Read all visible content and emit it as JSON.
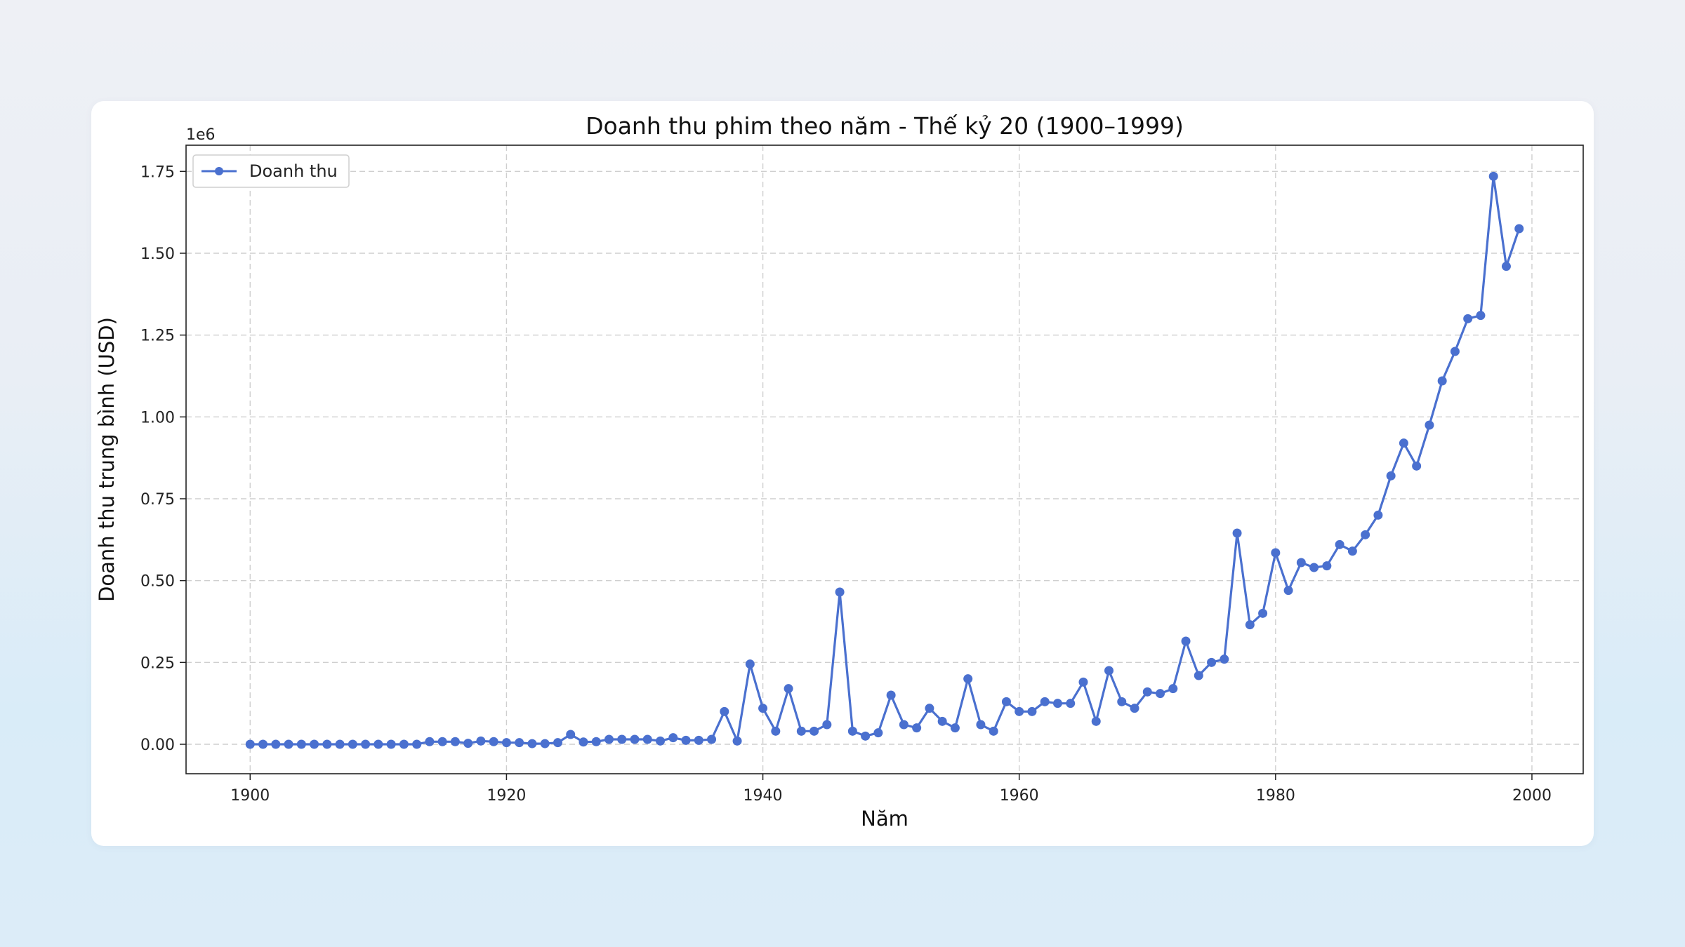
{
  "chart_data": {
    "type": "line",
    "title": "Doanh thu phim theo năm - Thế kỷ 20 (1900–1999)",
    "xlabel": "Năm",
    "ylabel": "Doanh thu trung bình (USD)",
    "y_offset_label": "1e6",
    "xlim": [
      1895,
      2004
    ],
    "ylim": [
      -0.09,
      1.83
    ],
    "x_ticks": [
      1900,
      1920,
      1940,
      1960,
      1980,
      2000
    ],
    "y_ticks": [
      0.0,
      0.25,
      0.5,
      0.75,
      1.0,
      1.25,
      1.5,
      1.75
    ],
    "y_tick_labels": [
      "0.00",
      "0.25",
      "0.50",
      "0.75",
      "1.00",
      "1.25",
      "1.50",
      "1.75"
    ],
    "grid": true,
    "legend_position": "top-left",
    "colors": {
      "series": "#4a70cf"
    },
    "x": [
      1900,
      1901,
      1902,
      1903,
      1904,
      1905,
      1906,
      1907,
      1908,
      1909,
      1910,
      1911,
      1912,
      1913,
      1914,
      1915,
      1916,
      1917,
      1918,
      1919,
      1920,
      1921,
      1922,
      1923,
      1924,
      1925,
      1926,
      1927,
      1928,
      1929,
      1930,
      1931,
      1932,
      1933,
      1934,
      1935,
      1936,
      1937,
      1938,
      1939,
      1940,
      1941,
      1942,
      1943,
      1944,
      1945,
      1946,
      1947,
      1948,
      1949,
      1950,
      1951,
      1952,
      1953,
      1954,
      1955,
      1956,
      1957,
      1958,
      1959,
      1960,
      1961,
      1962,
      1963,
      1964,
      1965,
      1966,
      1967,
      1968,
      1969,
      1970,
      1971,
      1972,
      1973,
      1974,
      1975,
      1976,
      1977,
      1978,
      1979,
      1980,
      1981,
      1982,
      1983,
      1984,
      1985,
      1986,
      1987,
      1988,
      1989,
      1990,
      1991,
      1992,
      1993,
      1994,
      1995,
      1996,
      1997,
      1998,
      1999
    ],
    "series": [
      {
        "name": "Doanh thu",
        "values": [
          0.0,
          0.0,
          0.0,
          0.0,
          0.0,
          0.0,
          0.0,
          0.0,
          0.0,
          0.0,
          0.0,
          0.0,
          0.0,
          0.0,
          0.008,
          0.008,
          0.008,
          0.003,
          0.01,
          0.008,
          0.005,
          0.005,
          0.002,
          0.002,
          0.005,
          0.03,
          0.007,
          0.008,
          0.015,
          0.015,
          0.015,
          0.015,
          0.01,
          0.02,
          0.012,
          0.012,
          0.015,
          0.1,
          0.01,
          0.245,
          0.11,
          0.04,
          0.17,
          0.04,
          0.04,
          0.06,
          0.465,
          0.04,
          0.025,
          0.035,
          0.15,
          0.06,
          0.05,
          0.11,
          0.07,
          0.05,
          0.2,
          0.06,
          0.04,
          0.13,
          0.1,
          0.1,
          0.13,
          0.125,
          0.125,
          0.19,
          0.07,
          0.225,
          0.13,
          0.11,
          0.16,
          0.155,
          0.17,
          0.315,
          0.21,
          0.25,
          0.26,
          0.645,
          0.365,
          0.4,
          0.585,
          0.47,
          0.555,
          0.54,
          0.545,
          0.61,
          0.59,
          0.64,
          0.7,
          0.82,
          0.92,
          0.85,
          0.975,
          1.11,
          1.2,
          1.3,
          1.31,
          1.735,
          1.46,
          1.575
        ]
      }
    ]
  }
}
